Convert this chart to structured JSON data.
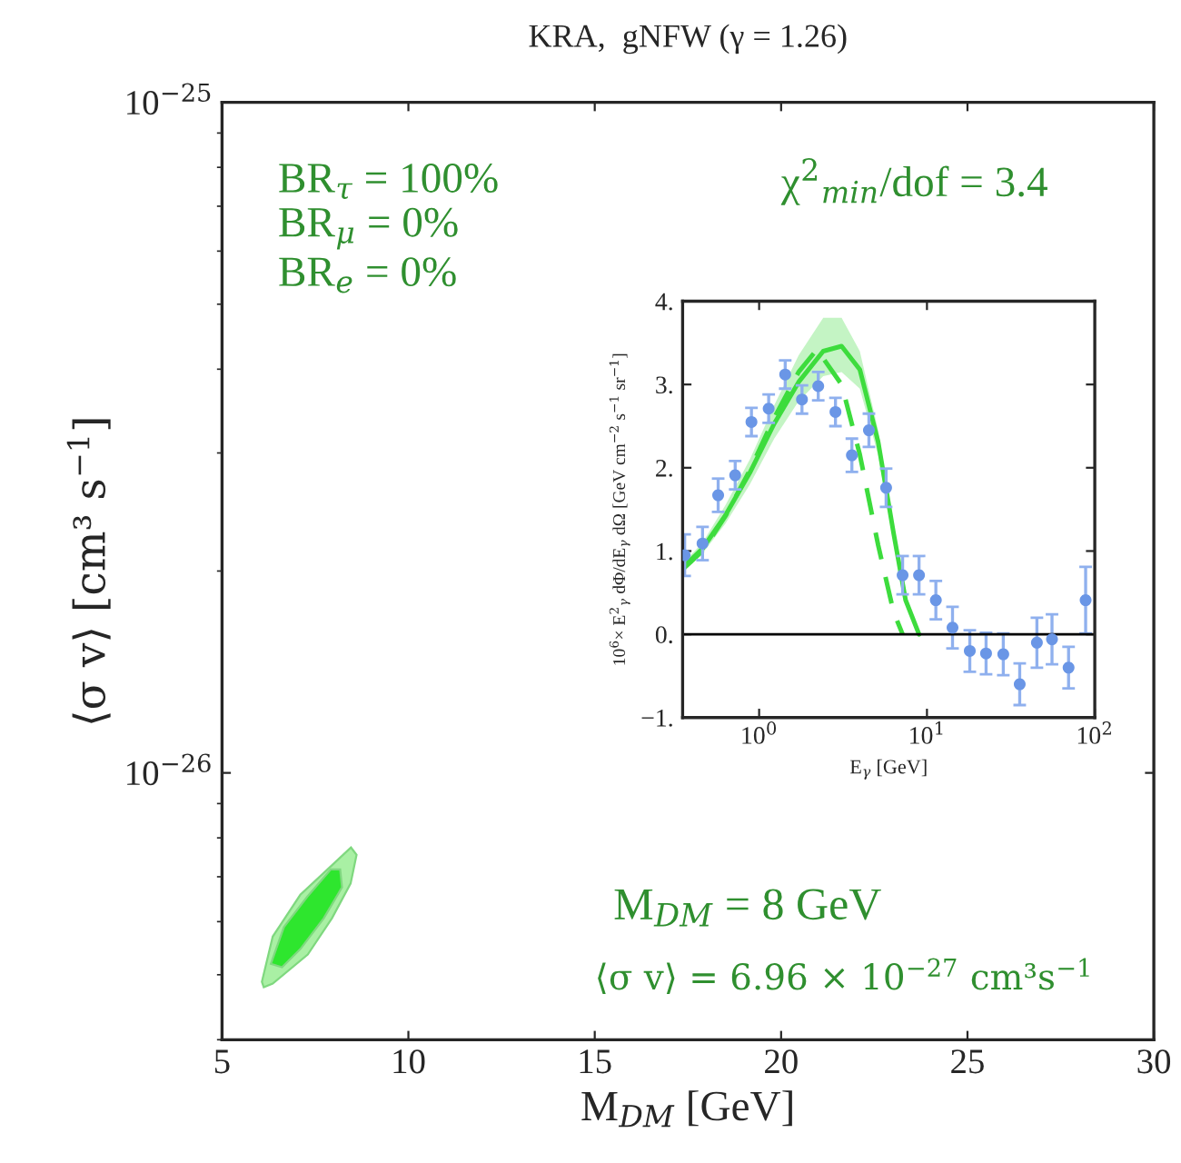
{
  "chart_data": [
    {
      "type": "area",
      "title": "KRA,  gNFW (γ = 1.26)",
      "xlabel": "M$_{DM}$ [GeV]",
      "ylabel": "⟨σ v⟩ [cm³ s$^{−1}$]",
      "log": "y",
      "xlim": [
        5,
        30
      ],
      "xticks": [
        5,
        10,
        15,
        20,
        25,
        30
      ],
      "ylim": [
        4e-27,
        1e-25
      ],
      "yticks": [
        {
          "value": 1e-25,
          "label": "10$^{−25}$"
        },
        {
          "value": 1e-26,
          "label": "10$^{−26}$"
        }
      ],
      "grid": false,
      "legend": false,
      "annotations": [
        "BR$_{τ}$ = 100%",
        "BR$_{μ}$ = 0%",
        "BR$_{e}$ = 0%",
        "χ$^{2}$$_{min}$/dof = 3.4",
        "M$_{DM}$ = 8 GeV",
        "⟨σ v⟩ = 6.96 × 10$^{−27}$ cm³s$^{−1}$"
      ],
      "series": [
        {
          "color": "#a9f0a4",
          "x": [
            6.07,
            6.36,
            7.1,
            7.83,
            8.46,
            8.61,
            8.45,
            7.95,
            7.3,
            6.36,
            6.12
          ],
          "values": [
            4.88e-27,
            5.7e-27,
            6.58e-27,
            7.18e-27,
            7.74e-27,
            7.55e-27,
            6.84e-27,
            6.07e-27,
            5.36e-27,
            4.85e-27,
            4.79e-27
          ]
        },
        {
          "color": "#2ee62e",
          "x": [
            6.31,
            6.66,
            7.29,
            7.92,
            8.17,
            8.22,
            7.73,
            7.1,
            6.61
          ],
          "values": [
            5.19e-27,
            5.89e-27,
            6.54e-27,
            7.18e-27,
            7.18e-27,
            6.75e-27,
            6.07e-27,
            5.46e-27,
            5.13e-27
          ]
        }
      ]
    },
    {
      "type": "scatter",
      "xlabel": "E$_{γ}$ [GeV]",
      "ylabel": "10$^{6}$× E$^{2}$$_{γ}$ dΦ/dE$_{γ}$ dΩ [GeV cm$^{−2}$ s$^{−1}$ sr$^{−1}$]",
      "log": "x",
      "xlim": [
        0.35,
        100
      ],
      "xticks": [
        {
          "value": 1,
          "label": "10$^{0}$"
        },
        {
          "value": 10,
          "label": "10$^{1}$"
        },
        {
          "value": 100,
          "label": "10$^{2}$"
        }
      ],
      "ylim": [
        -1,
        4
      ],
      "yticks": [
        {
          "value": -1,
          "label": "−1."
        },
        {
          "value": 0,
          "label": "0."
        },
        {
          "value": 1,
          "label": "1."
        },
        {
          "value": 2,
          "label": "2."
        },
        {
          "value": 3,
          "label": "3."
        },
        {
          "value": 4,
          "label": "4."
        }
      ],
      "grid": false,
      "legend": false,
      "ref_lines": [
        {
          "axis": "y",
          "value": 0,
          "color": "#000000"
        }
      ],
      "series": [
        {
          "type": "line",
          "color": "#3ddc3d",
          "line_style": "solid",
          "marker": "none",
          "x": [
            0.35,
            0.46,
            0.63,
            0.88,
            1.23,
            1.72,
            2.41,
            3.1,
            3.98,
            5.12,
            6.32,
            7.46,
            8.97
          ],
          "values": [
            0.8,
            1.03,
            1.43,
            1.94,
            2.53,
            3.03,
            3.4,
            3.46,
            3.18,
            2.31,
            1.22,
            0.41,
            0.0
          ],
          "lower": [
            0.75,
            0.97,
            1.33,
            1.8,
            2.35,
            2.8,
            3.1,
            3.15,
            2.95,
            2.15,
            1.13,
            0.37,
            0.0
          ],
          "upper": [
            0.85,
            1.1,
            1.55,
            2.1,
            2.75,
            3.35,
            3.8,
            3.8,
            3.4,
            2.45,
            1.3,
            0.45,
            0.0
          ]
        },
        {
          "type": "line",
          "color": "#3ddc3d",
          "line_style": "dashed",
          "marker": "none",
          "x": [
            0.35,
            0.46,
            0.63,
            0.88,
            1.23,
            1.72,
            2.21,
            3.1,
            3.98,
            5.12,
            6.32,
            7.16
          ],
          "values": [
            0.78,
            1.0,
            1.42,
            1.97,
            2.6,
            3.15,
            3.42,
            3.0,
            2.16,
            1.07,
            0.27,
            0.0
          ]
        },
        {
          "type": "scatter",
          "color": "#6a96e6",
          "marker": "circle",
          "x": [
            0.36,
            0.46,
            0.57,
            0.72,
            0.9,
            1.14,
            1.43,
            1.8,
            2.25,
            2.85,
            3.57,
            4.51,
            5.71,
            7.16,
            8.97,
            11.3,
            14.2,
            18.0,
            22.5,
            28.5,
            35.7,
            45.2,
            55.6,
            69.8,
            88.2
          ],
          "values": [
            0.95,
            1.09,
            1.67,
            1.91,
            2.55,
            2.71,
            3.12,
            2.82,
            2.98,
            2.67,
            2.15,
            2.45,
            1.76,
            0.71,
            0.71,
            0.41,
            0.08,
            -0.2,
            -0.23,
            -0.24,
            -0.6,
            -0.1,
            -0.06,
            -0.4,
            0.41
          ],
          "errors": [
            0.25,
            0.2,
            0.2,
            0.17,
            0.17,
            0.17,
            0.17,
            0.17,
            0.17,
            0.17,
            0.2,
            0.2,
            0.23,
            0.23,
            0.23,
            0.23,
            0.25,
            0.25,
            0.25,
            0.25,
            0.25,
            0.3,
            0.3,
            0.25,
            0.4
          ]
        }
      ]
    }
  ]
}
